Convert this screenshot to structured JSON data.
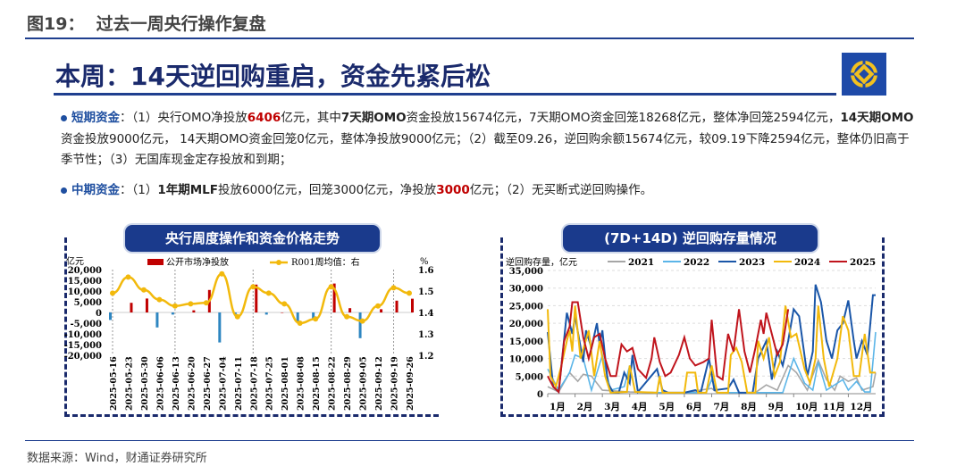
{
  "figure_title": "图19：  过去一周央行操作复盘",
  "headline": "本周：14天逆回购重启，资金先紧后松",
  "short_term": {
    "label": "短期资金",
    "parts": [
      "：（1）央行OMO净投放",
      "6406",
      "亿元，其中",
      "7天期OMO",
      "资金投放15674亿元，7天期OMO资金回笼18268亿元，整体净回笼2594亿元，",
      "14天期OMO",
      "资金投放9000亿元， 14天期OMO资金回笼0亿元，整体净投放9000亿元；（2）截至09.26，逆回购余额15674亿元，较09.19下降2594亿元，整体仍旧高于季节性；（3）无国库现金定存投放和到期；"
    ]
  },
  "mid_term": {
    "label": "中期资金",
    "parts": [
      "：（1）",
      "1年期MLF",
      "投放6000亿元，回笼3000亿元，净投放",
      "3000",
      "亿元；（2）无买断式逆回购操作。"
    ]
  },
  "source": "数据来源：Wind，财通证券研究所",
  "colors": {
    "navy": "#1a2a6c",
    "bar_pos": "#c00000",
    "bar_neg": "#2e86c1",
    "r001": "#f2b90c"
  },
  "chart_data": [
    {
      "type": "bar+line",
      "title": "央行周度操作和资金价格走势",
      "ylabel_left": "亿元",
      "ylabel_right": "%",
      "legend": [
        "公开市场净投放",
        "R001周均值：右"
      ],
      "ylim_left": [
        -20000,
        20000
      ],
      "yticks_left": [
        "20,000",
        "15,000",
        "10,000",
        "5,000",
        "0",
        "-5,000",
        "-10,000",
        "-15,000",
        "-20,000"
      ],
      "ylim_right": [
        1.2,
        1.6
      ],
      "yticks_right": [
        "1.6",
        "1.5",
        "1.4",
        "1.3",
        "1.2"
      ],
      "categories": [
        "2025-05-16",
        "2025-05-23",
        "2025-05-30",
        "2025-06-06",
        "2025-06-13",
        "2025-06-20",
        "2025-06-27",
        "2025-07-04",
        "2025-07-11",
        "2025-07-18",
        "2025-07-25",
        "2025-08-01",
        "2025-08-08",
        "2025-08-15",
        "2025-08-22",
        "2025-08-29",
        "2025-09-05",
        "2025-09-12",
        "2025-09-19",
        "2025-09-26"
      ],
      "series": [
        {
          "name": "公开市场净投放",
          "values": [
            -3500,
            4500,
            6500,
            -7000,
            -1000,
            1000,
            10500,
            -14000,
            -1000,
            13000,
            -1000,
            0,
            -4500,
            -3000,
            13500,
            2000,
            -12000,
            1500,
            5500,
            6406
          ]
        },
        {
          "name": "R001周均值",
          "values": [
            1.49,
            1.565,
            1.505,
            1.46,
            1.43,
            1.44,
            1.445,
            1.58,
            1.38,
            1.52,
            1.49,
            1.44,
            1.35,
            1.37,
            1.52,
            1.38,
            1.36,
            1.43,
            1.515,
            1.49
          ]
        }
      ]
    },
    {
      "type": "line",
      "title": "(7D+14D) 逆回购存量情况",
      "ylabel": "逆回购存量，亿元",
      "ylim": [
        0,
        35000
      ],
      "yticks": [
        "35,000",
        "30,000",
        "25,000",
        "20,000",
        "15,000",
        "10,000",
        "5,000",
        "0"
      ],
      "xticks": [
        "1月",
        "2月",
        "3月",
        "4月",
        "5月",
        "6月",
        "7月",
        "8月",
        "9月",
        "10月",
        "11月",
        "12月"
      ],
      "series": [
        {
          "name": "2021",
          "color": "#a6a6a6",
          "points": [
            [
              1,
              2000
            ],
            [
              1.4,
              500
            ],
            [
              1.8,
              6000
            ],
            [
              2.1,
              3500
            ],
            [
              2.3,
              5500
            ],
            [
              2.6,
              5000
            ],
            [
              3,
              1000
            ],
            [
              4,
              500
            ],
            [
              5,
              300
            ],
            [
              6,
              300
            ],
            [
              7,
              1500
            ],
            [
              7.2,
              300
            ],
            [
              8,
              300
            ],
            [
              8.6,
              300
            ],
            [
              9,
              2500
            ],
            [
              9.4,
              1000
            ],
            [
              9.8,
              8000
            ],
            [
              10.1,
              6000
            ],
            [
              10.5,
              1000
            ],
            [
              10.9,
              9500
            ],
            [
              11.2,
              4000
            ],
            [
              11.5,
              1000
            ],
            [
              11.7,
              5000
            ],
            [
              12,
              3500
            ],
            [
              12.3,
              4500
            ],
            [
              12.5,
              1000
            ],
            [
              12.9,
              2000
            ],
            [
              13,
              6000
            ]
          ]
        },
        {
          "name": "2022",
          "color": "#5bb5e8",
          "points": [
            [
              1,
              7000
            ],
            [
              1.4,
              1000
            ],
            [
              1.8,
              6000
            ],
            [
              2,
              11000
            ],
            [
              2.3,
              10000
            ],
            [
              2.6,
              1000
            ],
            [
              3,
              11000
            ],
            [
              3.3,
              1000
            ],
            [
              3.8,
              2000
            ],
            [
              4,
              8000
            ],
            [
              4.2,
              500
            ],
            [
              5,
              300
            ],
            [
              6,
              300
            ],
            [
              6.8,
              300
            ],
            [
              7,
              4000
            ],
            [
              7.2,
              300
            ],
            [
              8,
              300
            ],
            [
              9,
              300
            ],
            [
              9.6,
              300
            ],
            [
              10,
              10000
            ],
            [
              10.4,
              3000
            ],
            [
              10.7,
              1000
            ],
            [
              10.9,
              9000
            ],
            [
              11.2,
              1000
            ],
            [
              11.8,
              4000
            ],
            [
              12,
              1000
            ],
            [
              12.3,
              3500
            ],
            [
              12.6,
              500
            ],
            [
              12.8,
              500
            ],
            [
              13,
              17500
            ]
          ]
        },
        {
          "name": "2023",
          "color": "#1a56a8",
          "points": [
            [
              1,
              17500
            ],
            [
              1.2,
              2000
            ],
            [
              1.4,
              500
            ],
            [
              1.7,
              23000
            ],
            [
              1.9,
              17000
            ],
            [
              2,
              22000
            ],
            [
              2.3,
              9000
            ],
            [
              2.4,
              18000
            ],
            [
              2.6,
              13000
            ],
            [
              2.8,
              20000
            ],
            [
              2.9,
              14000
            ],
            [
              3,
              18000
            ],
            [
              3.2,
              3000
            ],
            [
              3.4,
              300
            ],
            [
              3.6,
              300
            ],
            [
              3.8,
              6000
            ],
            [
              4,
              3000
            ],
            [
              4.1,
              11000
            ],
            [
              4.3,
              500
            ],
            [
              5,
              7000
            ],
            [
              5.2,
              1000
            ],
            [
              5.4,
              300
            ],
            [
              6,
              300
            ],
            [
              6.4,
              1000
            ],
            [
              6.6,
              300
            ],
            [
              6.9,
              10000
            ],
            [
              7.1,
              1000
            ],
            [
              7.6,
              1500
            ],
            [
              7.8,
              4000
            ],
            [
              8,
              300
            ],
            [
              8.5,
              300
            ],
            [
              8.7,
              10000
            ],
            [
              9,
              15000
            ],
            [
              9.2,
              4000
            ],
            [
              9.4,
              12000
            ],
            [
              9.6,
              8000
            ],
            [
              9.8,
              15000
            ],
            [
              10,
              24000
            ],
            [
              10.2,
              22000
            ],
            [
              10.5,
              5000
            ],
            [
              10.7,
              12000
            ],
            [
              10.8,
              31000
            ],
            [
              11,
              26000
            ],
            [
              11.2,
              15000
            ],
            [
              11.4,
              10000
            ],
            [
              11.6,
              18000
            ],
            [
              11.8,
              20000
            ],
            [
              12,
              26500
            ],
            [
              12.2,
              15000
            ],
            [
              12.3,
              10000
            ],
            [
              12.5,
              15000
            ],
            [
              12.7,
              11000
            ],
            [
              12.9,
              28000
            ],
            [
              13,
              28000
            ]
          ]
        },
        {
          "name": "2024",
          "color": "#f2b90c",
          "points": [
            [
              1,
              24000
            ],
            [
              1.1,
              5000
            ],
            [
              1.3,
              2000
            ],
            [
              1.5,
              8000
            ],
            [
              1.7,
              15000
            ],
            [
              1.8,
              18000
            ],
            [
              1.9,
              12000
            ],
            [
              2,
              25000
            ],
            [
              2.2,
              10000
            ],
            [
              2.5,
              18000
            ],
            [
              2.7,
              5000
            ],
            [
              2.9,
              15000
            ],
            [
              3.1,
              5000
            ],
            [
              3.3,
              300
            ],
            [
              3.9,
              500
            ],
            [
              4,
              8000
            ],
            [
              4.2,
              500
            ],
            [
              5,
              300
            ],
            [
              5.1,
              5000
            ],
            [
              5.2,
              300
            ],
            [
              6,
              300
            ],
            [
              6.1,
              6000
            ],
            [
              6.4,
              6000
            ],
            [
              6.5,
              300
            ],
            [
              6.8,
              300
            ],
            [
              7,
              8000
            ],
            [
              7.2,
              300
            ],
            [
              7.6,
              300
            ],
            [
              7.7,
              11000
            ],
            [
              7.9,
              13000
            ],
            [
              8.1,
              9000
            ],
            [
              8.3,
              300
            ],
            [
              8.6,
              300
            ],
            [
              8.7,
              15000
            ],
            [
              8.9,
              10000
            ],
            [
              9.1,
              16000
            ],
            [
              9.3,
              5000
            ],
            [
              9.5,
              9000
            ],
            [
              9.7,
              25000
            ],
            [
              9.9,
              16000
            ],
            [
              10.1,
              17000
            ],
            [
              10.4,
              7000
            ],
            [
              10.6,
              3000
            ],
            [
              10.8,
              10000
            ],
            [
              10.9,
              25000
            ],
            [
              11.1,
              10000
            ],
            [
              11.3,
              2000
            ],
            [
              11.6,
              10000
            ],
            [
              11.8,
              22000
            ],
            [
              12,
              18000
            ],
            [
              12.2,
              5000
            ],
            [
              12.4,
              5000
            ],
            [
              12.6,
              17000
            ],
            [
              12.8,
              6000
            ],
            [
              13,
              6000
            ]
          ]
        },
        {
          "name": "2025",
          "color": "#c0141c",
          "points": [
            [
              1,
              5000
            ],
            [
              1.2,
              2000
            ],
            [
              1.4,
              500
            ],
            [
              1.6,
              15000
            ],
            [
              1.8,
              19000
            ],
            [
              1.9,
              26000
            ],
            [
              2.1,
              26000
            ],
            [
              2.3,
              16000
            ],
            [
              2.5,
              10000
            ],
            [
              2.7,
              16000
            ],
            [
              2.9,
              17000
            ],
            [
              3.1,
              10000
            ],
            [
              3.3,
              5000
            ],
            [
              3.5,
              5000
            ],
            [
              3.7,
              14000
            ],
            [
              3.9,
              12000
            ],
            [
              4.1,
              13000
            ],
            [
              4.3,
              7000
            ],
            [
              4.6,
              4500
            ],
            [
              4.8,
              10000
            ],
            [
              4.9,
              16000
            ],
            [
              5.1,
              9000
            ],
            [
              5.3,
              5000
            ],
            [
              5.5,
              6000
            ],
            [
              5.8,
              11000
            ],
            [
              6,
              16000
            ],
            [
              6.2,
              10000
            ],
            [
              6.4,
              8000
            ],
            [
              6.7,
              9000
            ],
            [
              6.9,
              10000
            ],
            [
              7,
              21000
            ],
            [
              7.2,
              5000
            ],
            [
              7.4,
              4000
            ],
            [
              7.6,
              17000
            ],
            [
              7.8,
              12000
            ],
            [
              8,
              24000
            ],
            [
              8.2,
              12000
            ],
            [
              8.4,
              6000
            ],
            [
              8.6,
              13000
            ],
            [
              8.8,
              21000
            ],
            [
              8.9,
              17000
            ],
            [
              9,
              23000
            ],
            [
              9.2,
              17000
            ],
            [
              9.4,
              11000
            ],
            [
              9.6,
              14000
            ],
            [
              9.8,
              24000
            ]
          ]
        }
      ]
    }
  ]
}
